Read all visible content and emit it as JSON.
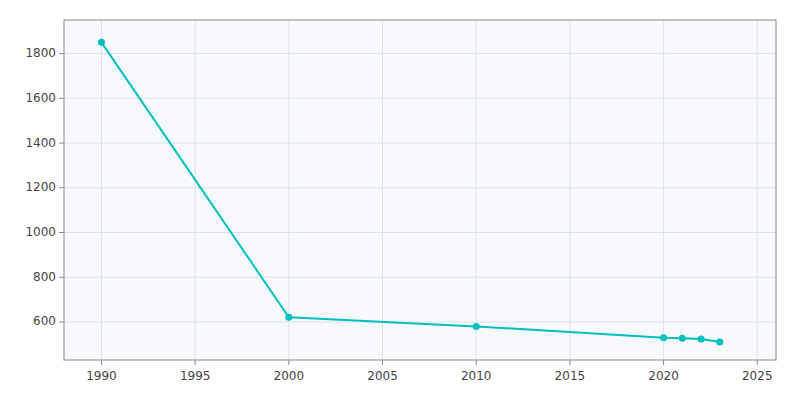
{
  "chart_data": {
    "type": "line",
    "x": [
      1990,
      2000,
      2010,
      2020,
      2021,
      2022,
      2023
    ],
    "values": [
      1850,
      621,
      580,
      530,
      527,
      524,
      510
    ],
    "color": "#00BFBF",
    "marker": "circle",
    "grid": true,
    "xlim": [
      1988,
      2026
    ],
    "ylim": [
      430,
      1950
    ],
    "xticks": [
      1990,
      1995,
      2000,
      2005,
      2010,
      2015,
      2020,
      2025
    ],
    "yticks": [
      600,
      800,
      1000,
      1200,
      1400,
      1600,
      1800
    ]
  }
}
